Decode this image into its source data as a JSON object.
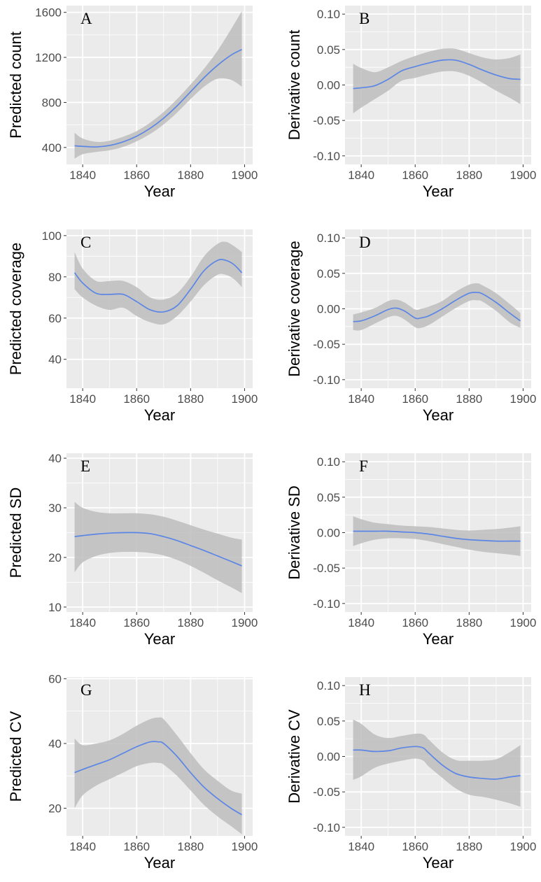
{
  "colors": {
    "panel_bg": "#ebebeb",
    "grid": "#ffffff",
    "line": "#5b86e5",
    "band": "#bdbdbd"
  },
  "chart_data": [
    {
      "type": "line",
      "letter": "A",
      "xlabel": "Year",
      "ylabel": "Predicted count",
      "xlim": [
        1834,
        1903
      ],
      "ylim": [
        250,
        1660
      ],
      "xticks": [
        1840,
        1860,
        1880,
        1900
      ],
      "yticks": [
        400,
        800,
        1200,
        1600
      ],
      "xtick_labels": [
        "1840",
        "1860",
        "1880",
        "1900"
      ],
      "ytick_labels": [
        "400",
        "800",
        "1200",
        "1600"
      ],
      "grid": true,
      "series": [
        {
          "x": [
            1837,
            1840,
            1845,
            1850,
            1855,
            1860,
            1865,
            1870,
            1875,
            1880,
            1885,
            1890,
            1895,
            1899
          ],
          "y": [
            415,
            410,
            405,
            418,
            450,
            500,
            570,
            660,
            770,
            895,
            1020,
            1130,
            1220,
            1270
          ],
          "lower": [
            300,
            340,
            360,
            375,
            405,
            455,
            520,
            605,
            710,
            830,
            940,
            1010,
            1000,
            940
          ],
          "upper": [
            530,
            480,
            450,
            460,
            495,
            545,
            620,
            715,
            830,
            960,
            1100,
            1260,
            1450,
            1610
          ]
        }
      ]
    },
    {
      "type": "line",
      "letter": "B",
      "xlabel": "Year",
      "ylabel": "Derivative count",
      "xlim": [
        1834,
        1903
      ],
      "ylim": [
        -0.112,
        0.112
      ],
      "xticks": [
        1840,
        1860,
        1880,
        1900
      ],
      "yticks": [
        -0.1,
        -0.05,
        0,
        0.05,
        0.1
      ],
      "xtick_labels": [
        "1840",
        "1860",
        "1880",
        "1900"
      ],
      "ytick_labels": [
        "-0.10",
        "-0.05",
        "0.00",
        "0.05",
        "0.10"
      ],
      "grid": true,
      "series": [
        {
          "x": [
            1837,
            1840,
            1845,
            1850,
            1855,
            1860,
            1865,
            1870,
            1875,
            1880,
            1885,
            1890,
            1895,
            1899
          ],
          "y": [
            -0.005,
            -0.004,
            -0.001,
            0.008,
            0.02,
            0.026,
            0.031,
            0.035,
            0.035,
            0.029,
            0.021,
            0.014,
            0.009,
            0.008
          ],
          "lower": [
            -0.04,
            -0.032,
            -0.02,
            -0.008,
            0.006,
            0.01,
            0.015,
            0.019,
            0.019,
            0.013,
            0.003,
            -0.008,
            -0.018,
            -0.027
          ],
          "upper": [
            0.03,
            0.024,
            0.018,
            0.025,
            0.034,
            0.041,
            0.047,
            0.051,
            0.051,
            0.045,
            0.039,
            0.036,
            0.038,
            0.043
          ]
        }
      ]
    },
    {
      "type": "line",
      "letter": "C",
      "xlabel": "Year",
      "ylabel": "Predicted coverage",
      "xlim": [
        1834,
        1903
      ],
      "ylim": [
        26,
        103
      ],
      "xticks": [
        1840,
        1860,
        1880,
        1900
      ],
      "yticks": [
        40,
        60,
        80,
        100
      ],
      "xtick_labels": [
        "1840",
        "1860",
        "1880",
        "1900"
      ],
      "ytick_labels": [
        "40",
        "60",
        "80",
        "100"
      ],
      "grid": true,
      "series": [
        {
          "x": [
            1837,
            1840,
            1845,
            1850,
            1855,
            1860,
            1865,
            1870,
            1875,
            1880,
            1885,
            1890,
            1893,
            1896,
            1899
          ],
          "y": [
            82,
            77,
            72,
            71.5,
            71.5,
            68,
            64,
            63,
            66,
            74,
            83,
            88,
            88,
            86,
            82
          ],
          "lower": [
            74,
            70,
            66,
            64,
            65,
            61,
            58,
            57,
            61,
            68,
            76,
            81,
            81,
            79,
            75
          ],
          "upper": [
            92,
            84,
            78,
            78,
            78,
            75,
            70,
            69,
            72,
            80,
            90,
            96,
            97,
            95,
            92
          ]
        }
      ]
    },
    {
      "type": "line",
      "letter": "D",
      "xlabel": "Year",
      "ylabel": "Derivative coverage",
      "xlim": [
        1834,
        1903
      ],
      "ylim": [
        -0.112,
        0.112
      ],
      "xticks": [
        1840,
        1860,
        1880,
        1900
      ],
      "yticks": [
        -0.1,
        -0.05,
        0,
        0.05,
        0.1
      ],
      "xtick_labels": [
        "1840",
        "1860",
        "1880",
        "1900"
      ],
      "ytick_labels": [
        "-0.10",
        "-0.05",
        "0.00",
        "0.05",
        "0.10"
      ],
      "grid": true,
      "series": [
        {
          "x": [
            1837,
            1840,
            1845,
            1850,
            1853,
            1856,
            1860,
            1862,
            1865,
            1870,
            1875,
            1880,
            1883,
            1885,
            1890,
            1895,
            1899
          ],
          "y": [
            -0.018,
            -0.017,
            -0.01,
            -0.001,
            0.001,
            -0.003,
            -0.013,
            -0.013,
            -0.01,
            0.0,
            0.012,
            0.022,
            0.023,
            0.021,
            0.009,
            -0.006,
            -0.017
          ],
          "lower": [
            -0.03,
            -0.03,
            -0.021,
            -0.012,
            -0.01,
            -0.015,
            -0.026,
            -0.027,
            -0.023,
            -0.011,
            0.001,
            0.011,
            0.012,
            0.01,
            -0.003,
            -0.019,
            -0.027
          ],
          "upper": [
            -0.008,
            -0.005,
            0.001,
            0.011,
            0.013,
            0.009,
            -0.001,
            0.0,
            0.003,
            0.011,
            0.024,
            0.034,
            0.036,
            0.033,
            0.022,
            0.007,
            -0.006
          ]
        }
      ]
    },
    {
      "type": "line",
      "letter": "E",
      "xlabel": "Year",
      "ylabel": "Predicted SD",
      "xlim": [
        1834,
        1903
      ],
      "ylim": [
        9,
        41
      ],
      "xticks": [
        1840,
        1860,
        1880,
        1900
      ],
      "yticks": [
        10,
        20,
        30,
        40
      ],
      "xtick_labels": [
        "1840",
        "1860",
        "1880",
        "1900"
      ],
      "ytick_labels": [
        "10",
        "20",
        "30",
        "40"
      ],
      "grid": true,
      "series": [
        {
          "x": [
            1837,
            1840,
            1845,
            1850,
            1855,
            1860,
            1865,
            1870,
            1875,
            1880,
            1885,
            1890,
            1895,
            1899
          ],
          "y": [
            24.2,
            24.4,
            24.7,
            24.9,
            25.0,
            25.0,
            24.8,
            24.2,
            23.4,
            22.4,
            21.4,
            20.3,
            19.2,
            18.3
          ],
          "lower": [
            17.0,
            19.0,
            20.3,
            20.9,
            21.1,
            21.1,
            20.9,
            20.4,
            19.5,
            18.3,
            16.9,
            15.4,
            14.0,
            12.8
          ],
          "upper": [
            31.2,
            30.0,
            29.2,
            28.9,
            28.9,
            28.9,
            28.7,
            28.2,
            27.4,
            26.5,
            25.6,
            24.8,
            24.0,
            23.6
          ]
        }
      ]
    },
    {
      "type": "line",
      "letter": "F",
      "xlabel": "Year",
      "ylabel": "Derivative SD",
      "xlim": [
        1834,
        1903
      ],
      "ylim": [
        -0.112,
        0.112
      ],
      "xticks": [
        1840,
        1860,
        1880,
        1900
      ],
      "yticks": [
        -0.1,
        -0.05,
        0,
        0.05,
        0.1
      ],
      "xtick_labels": [
        "1840",
        "1860",
        "1880",
        "1900"
      ],
      "ytick_labels": [
        "-0.10",
        "-0.05",
        "0.00",
        "0.05",
        "0.10"
      ],
      "grid": true,
      "series": [
        {
          "x": [
            1837,
            1840,
            1845,
            1850,
            1855,
            1860,
            1865,
            1870,
            1875,
            1880,
            1885,
            1890,
            1895,
            1899
          ],
          "y": [
            0.002,
            0.002,
            0.002,
            0.002,
            0.001,
            0.0,
            -0.002,
            -0.005,
            -0.008,
            -0.01,
            -0.011,
            -0.012,
            -0.012,
            -0.012
          ],
          "lower": [
            -0.019,
            -0.015,
            -0.01,
            -0.008,
            -0.008,
            -0.009,
            -0.012,
            -0.016,
            -0.02,
            -0.024,
            -0.027,
            -0.029,
            -0.031,
            -0.033
          ],
          "upper": [
            0.023,
            0.019,
            0.014,
            0.012,
            0.01,
            0.009,
            0.008,
            0.006,
            0.004,
            0.003,
            0.004,
            0.005,
            0.007,
            0.009
          ]
        }
      ]
    },
    {
      "type": "line",
      "letter": "G",
      "xlabel": "Year",
      "ylabel": "Predicted CV",
      "xlim": [
        1834,
        1903
      ],
      "ylim": [
        11.5,
        60.5
      ],
      "xticks": [
        1840,
        1860,
        1880,
        1900
      ],
      "yticks": [
        20,
        40,
        60
      ],
      "xtick_labels": [
        "1840",
        "1860",
        "1880",
        "1900"
      ],
      "ytick_labels": [
        "20",
        "40",
        "60"
      ],
      "grid": true,
      "series": [
        {
          "x": [
            1837,
            1840,
            1845,
            1850,
            1855,
            1860,
            1865,
            1868,
            1870,
            1875,
            1880,
            1885,
            1890,
            1895,
            1899
          ],
          "y": [
            31,
            32,
            33.5,
            35,
            37,
            39,
            40.5,
            40.5,
            40,
            36,
            31,
            26.5,
            23,
            20,
            18
          ],
          "lower": [
            20,
            24,
            27,
            29,
            31,
            33,
            34,
            34,
            33.5,
            30,
            25.5,
            21,
            17.5,
            14.5,
            12
          ],
          "upper": [
            41.5,
            39.5,
            40,
            41,
            43,
            45.5,
            47.5,
            48,
            47.5,
            42.5,
            37,
            32,
            28.5,
            25.5,
            24.5
          ]
        }
      ]
    },
    {
      "type": "line",
      "letter": "H",
      "xlabel": "Year",
      "ylabel": "Derivative CV",
      "xlim": [
        1834,
        1903
      ],
      "ylim": [
        -0.112,
        0.112
      ],
      "xticks": [
        1840,
        1860,
        1880,
        1900
      ],
      "yticks": [
        -0.1,
        -0.05,
        0,
        0.05,
        0.1
      ],
      "xtick_labels": [
        "1840",
        "1860",
        "1880",
        "1900"
      ],
      "ytick_labels": [
        "-0.10",
        "-0.05",
        "0.00",
        "0.05",
        "0.10"
      ],
      "grid": true,
      "series": [
        {
          "x": [
            1837,
            1840,
            1845,
            1850,
            1855,
            1860,
            1863,
            1865,
            1870,
            1875,
            1880,
            1885,
            1890,
            1895,
            1899
          ],
          "y": [
            0.009,
            0.009,
            0.007,
            0.008,
            0.012,
            0.014,
            0.012,
            0.005,
            -0.012,
            -0.024,
            -0.029,
            -0.031,
            -0.032,
            -0.029,
            -0.027
          ],
          "lower": [
            -0.033,
            -0.028,
            -0.016,
            -0.01,
            -0.006,
            -0.003,
            -0.006,
            -0.014,
            -0.03,
            -0.045,
            -0.054,
            -0.057,
            -0.061,
            -0.066,
            -0.071
          ],
          "upper": [
            0.052,
            0.046,
            0.031,
            0.026,
            0.029,
            0.032,
            0.031,
            0.024,
            0.006,
            -0.005,
            -0.006,
            -0.006,
            -0.004,
            0.006,
            0.016
          ]
        }
      ]
    }
  ]
}
